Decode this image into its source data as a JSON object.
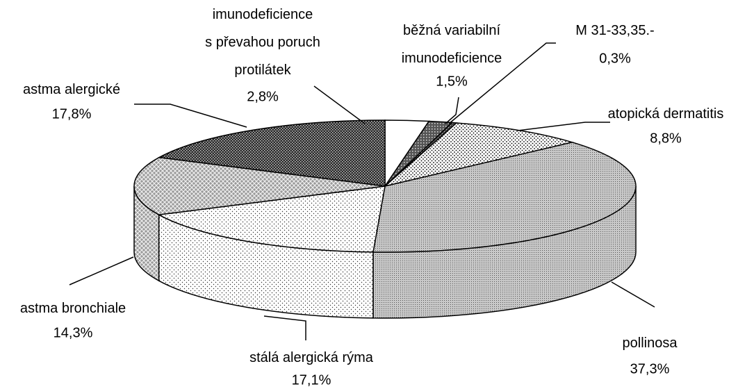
{
  "chart_data": {
    "type": "pie3d",
    "categories": [
      "imunodeficience\ns převahou poruch\nprotilátek",
      "běžná variabilní\nimunodeficience",
      "M  31-33,35.-",
      "atopická dermatitis",
      "pollinosa",
      "stálá alergická rýma",
      "astma bronchiale",
      "astma alergické"
    ],
    "values": [
      2.8,
      1.5,
      0.3,
      8.8,
      37.3,
      17.1,
      14.3,
      17.8
    ],
    "value_labels": [
      "2,8%",
      "1,5%",
      "0,3%",
      "8,8%",
      "37,3%",
      "17,1%",
      "14,3%",
      "17,8%"
    ]
  }
}
